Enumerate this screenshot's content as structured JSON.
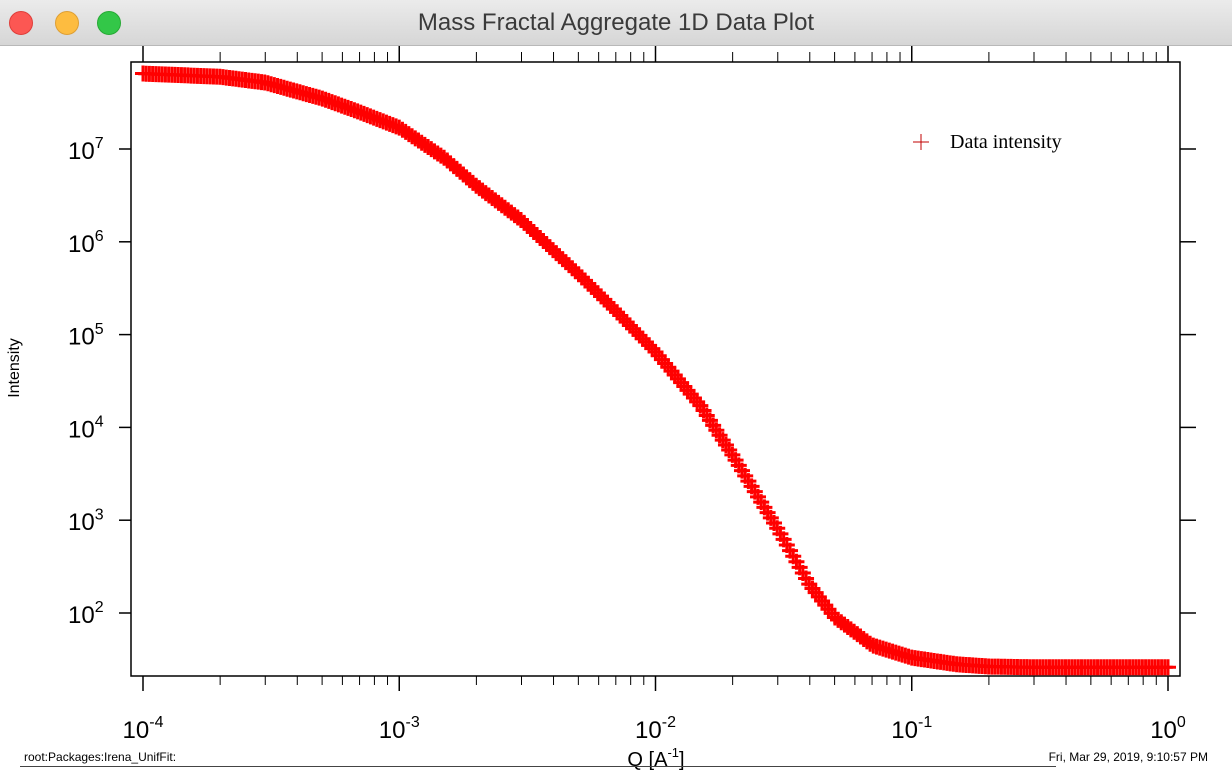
{
  "window": {
    "title": "Mass Fractal Aggregate 1D Data Plot"
  },
  "footer": {
    "path": "root:Packages:Irena_UnifFit:",
    "timestamp": "Fri, Mar 29, 2019, 9:10:57 PM"
  },
  "colors": {
    "marker": "#ff0000",
    "legend_marker": "#c00000"
  },
  "chart_data": {
    "type": "scatter",
    "xscale": "log",
    "yscale": "log",
    "xlabel_base": "Q [A",
    "xlabel_exp": "-1",
    "xlabel_close": "]",
    "ylabel": "Intensity",
    "xlim": [
      0.0001,
      1
    ],
    "ylim": [
      22,
      80000000
    ],
    "xticks": [
      {
        "base": "10",
        "exp": "-4"
      },
      {
        "base": "10",
        "exp": "-3"
      },
      {
        "base": "10",
        "exp": "-2"
      },
      {
        "base": "10",
        "exp": "-1"
      },
      {
        "base": "10",
        "exp": "0"
      }
    ],
    "yticks": [
      {
        "base": "10",
        "exp": "2"
      },
      {
        "base": "10",
        "exp": "3"
      },
      {
        "base": "10",
        "exp": "4"
      },
      {
        "base": "10",
        "exp": "5"
      },
      {
        "base": "10",
        "exp": "6"
      },
      {
        "base": "10",
        "exp": "7"
      }
    ],
    "legend": {
      "label": "Data intensity",
      "position": "top-right"
    },
    "series": [
      {
        "name": "Data intensity",
        "marker": "plus",
        "x": [
          0.0001,
          0.0002,
          0.0003,
          0.0005,
          0.0007,
          0.001,
          0.0015,
          0.002,
          0.003,
          0.005,
          0.007,
          0.01,
          0.015,
          0.02,
          0.03,
          0.04,
          0.05,
          0.07,
          0.1,
          0.15,
          0.2,
          0.3,
          0.5,
          0.7,
          1.0
        ],
        "y": [
          65000000,
          60000000,
          52000000,
          35000000,
          25000000,
          17000000,
          8000000,
          4000000,
          1700000,
          450000,
          180000,
          65000,
          17000,
          5000,
          800,
          200,
          90,
          45,
          33,
          28,
          26.5,
          26,
          26,
          26,
          26
        ]
      }
    ]
  }
}
